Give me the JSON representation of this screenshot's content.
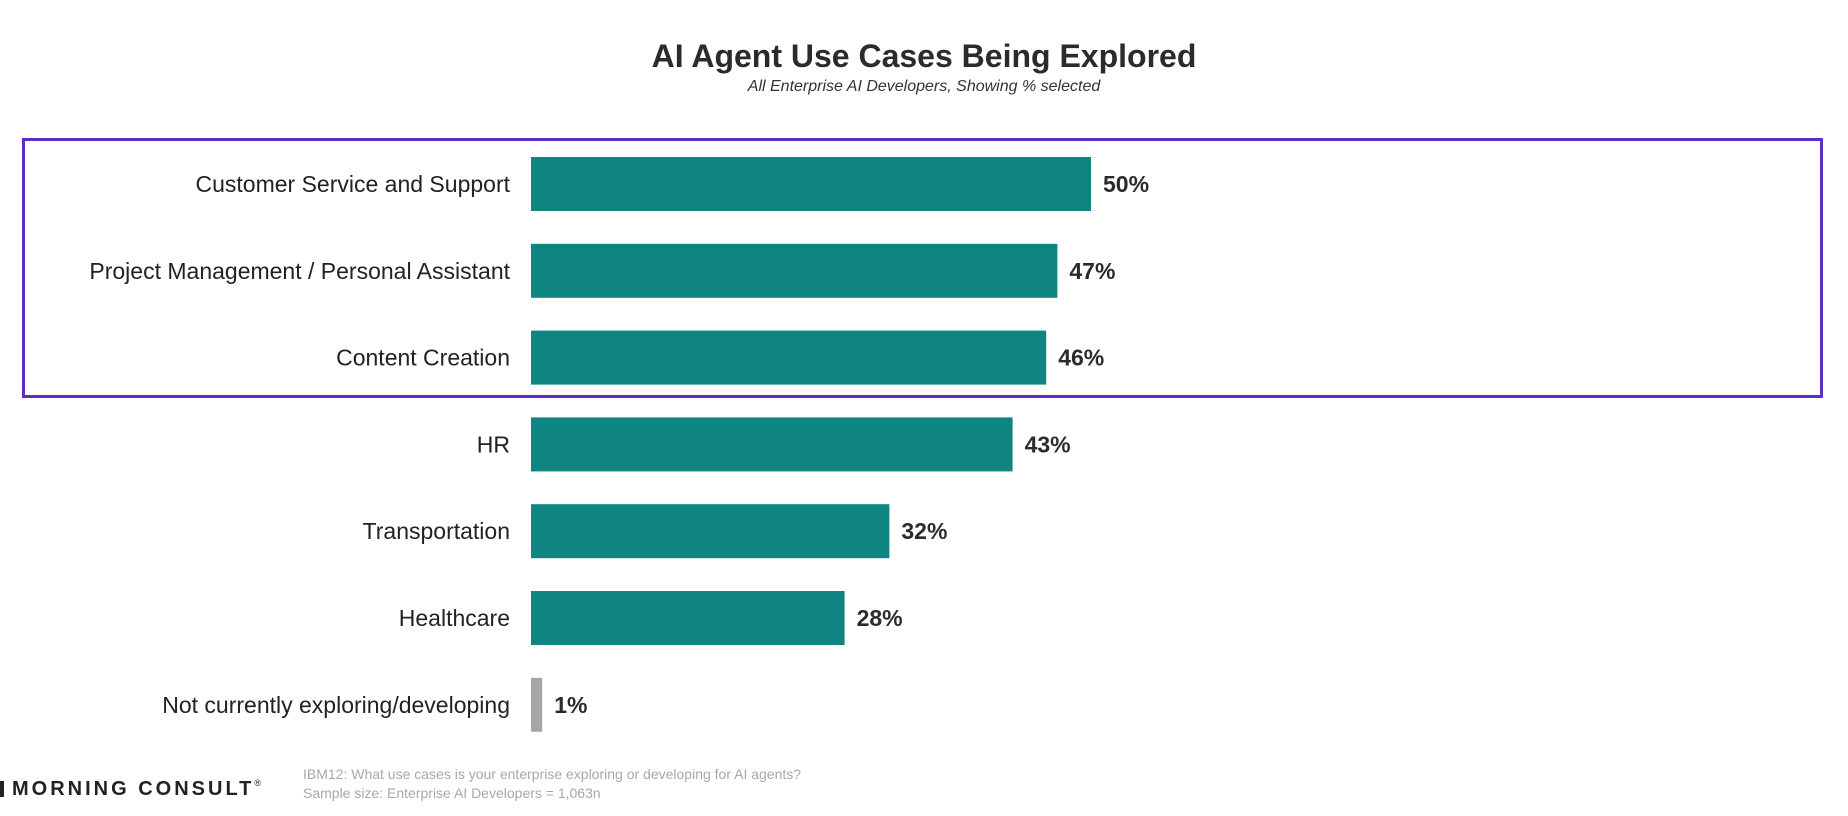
{
  "chart_data": {
    "type": "bar",
    "orientation": "horizontal",
    "title": "AI Agent Use Cases Being Explored",
    "subtitle": "All Enterprise AI Developers, Showing % selected",
    "categories": [
      "Customer Service and Support",
      "Project Management / Personal Assistant",
      "Content Creation",
      "HR",
      "Transportation",
      "Healthcare",
      "Not currently exploring/developing"
    ],
    "values": [
      50,
      47,
      46,
      43,
      32,
      28,
      1
    ],
    "value_labels": [
      "50%",
      "47%",
      "46%",
      "43%",
      "32%",
      "28%",
      "1%"
    ],
    "bar_colors": [
      "#0e8580",
      "#0e8580",
      "#0e8580",
      "#0e8580",
      "#0e8580",
      "#0e8580",
      "#a6a6a6"
    ],
    "highlighted_categories": [
      "Customer Service and Support",
      "Project Management / Personal Assistant",
      "Content Creation"
    ],
    "highlight_color": "#5a2fc2",
    "xlim": [
      0,
      100
    ],
    "grid": false,
    "legend": "none"
  },
  "footer": {
    "logo_text": "MORNING CONSULT",
    "logo_mark": "®",
    "question": "IBM12: What use cases is your enterprise exploring or developing for AI agents?",
    "sample": "Sample size: Enterprise AI Developers = 1,063n"
  }
}
